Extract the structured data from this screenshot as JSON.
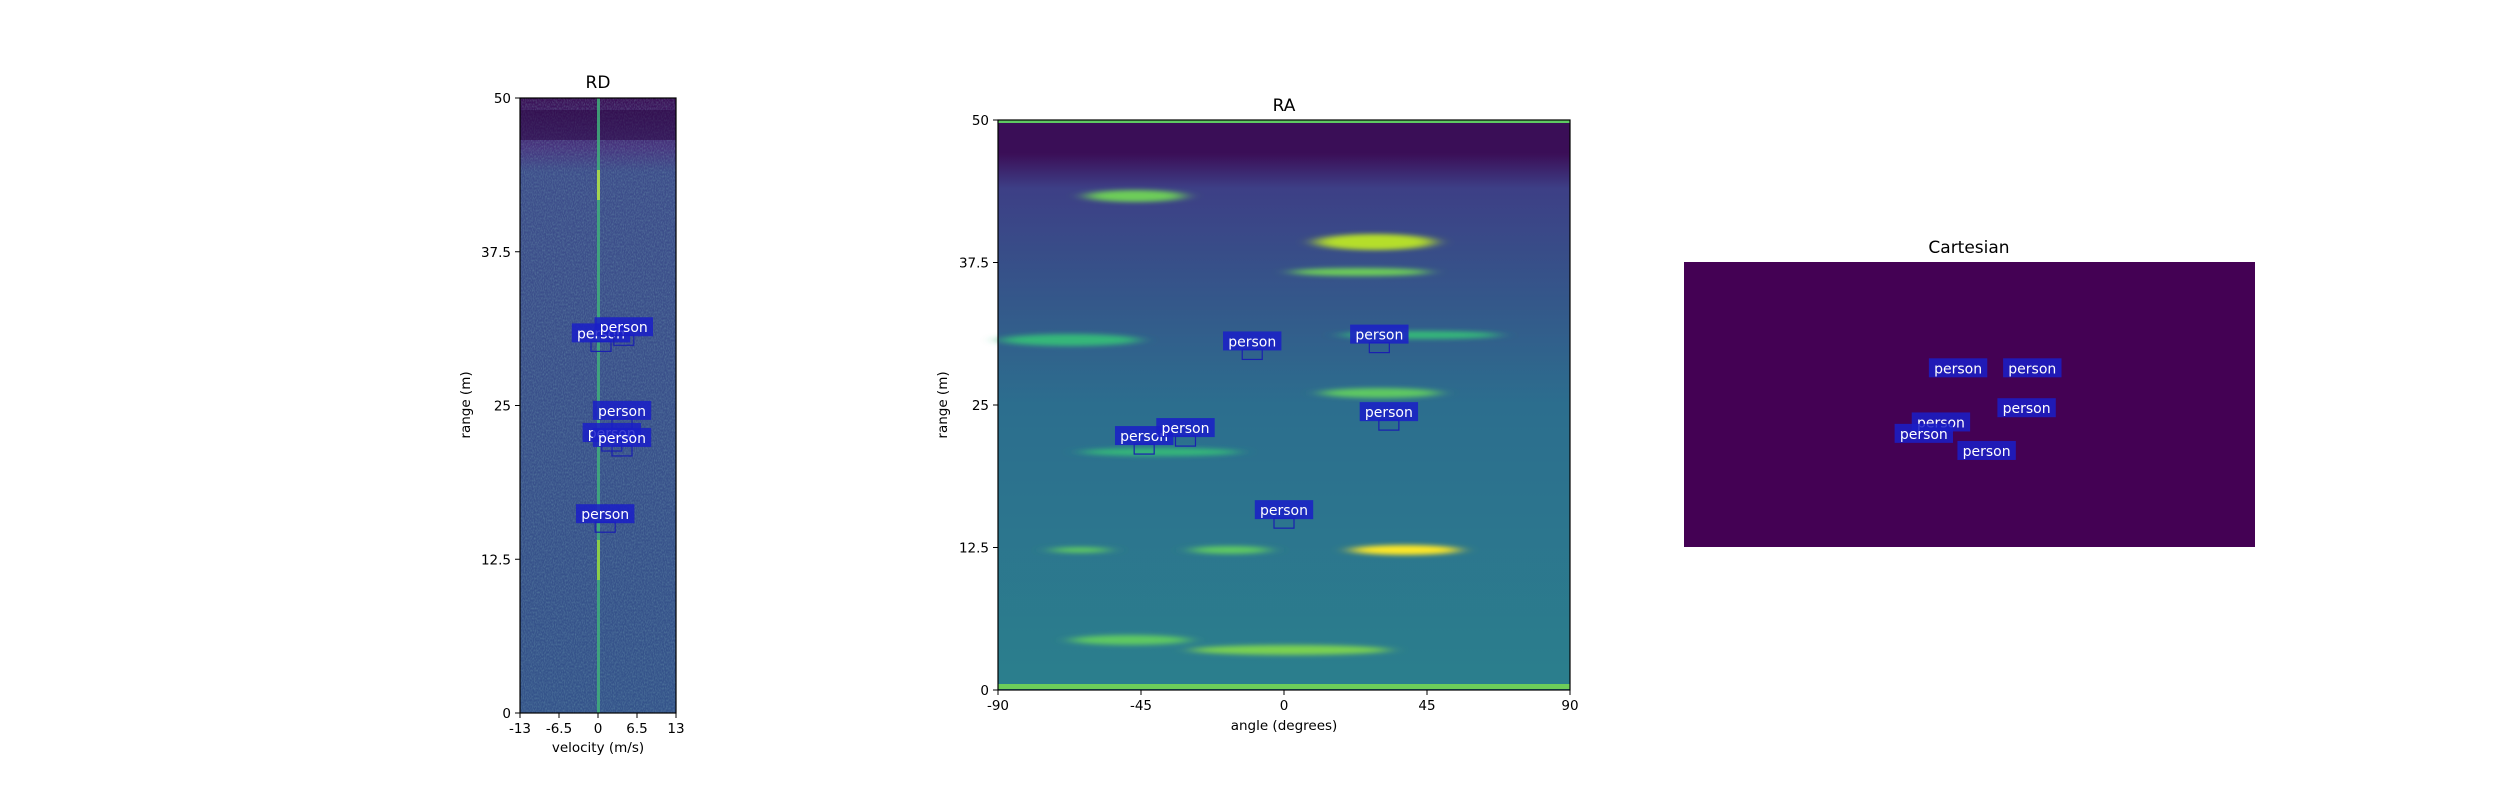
{
  "chart_data": [
    {
      "panel": "rd",
      "type": "heatmap",
      "title": "RD",
      "xlabel": "velocity (m/s)",
      "ylabel": "range (m)",
      "xlim": [
        -13,
        13
      ],
      "ylim": [
        0,
        50
      ],
      "xticks": [
        -13,
        -6.5,
        0,
        6.5,
        13
      ],
      "xtick_labels": [
        "-13",
        "-6.5",
        "0",
        "6.5",
        "13"
      ],
      "yticks": [
        0,
        12.5,
        25,
        37.5,
        50
      ],
      "ytick_labels": [
        "0",
        "12.5",
        "25",
        "37.5",
        "50"
      ],
      "colormap": [
        "#440154",
        "#3b528b",
        "#21918c",
        "#5ec962",
        "#fde725"
      ],
      "detections": [
        {
          "label": "person",
          "x": 0.5,
          "y": 30.7
        },
        {
          "label": "person",
          "x": 4.3,
          "y": 31.2
        },
        {
          "label": "person",
          "x": 4.0,
          "y": 24.4
        },
        {
          "label": "person",
          "x": 2.3,
          "y": 22.6
        },
        {
          "label": "person",
          "x": 4.0,
          "y": 22.2
        },
        {
          "label": "person",
          "x": 1.2,
          "y": 16.0
        }
      ]
    },
    {
      "panel": "ra",
      "type": "heatmap",
      "title": "RA",
      "xlabel": "angle (degrees)",
      "ylabel": "range (m)",
      "xlim": [
        -90,
        90
      ],
      "ylim": [
        0,
        50
      ],
      "xticks": [
        -90,
        -45,
        0,
        45,
        90
      ],
      "xtick_labels": [
        "-90",
        "-45",
        "0",
        "45",
        "90"
      ],
      "yticks": [
        0,
        12.5,
        25,
        37.5,
        50
      ],
      "ytick_labels": [
        "0",
        "12.5",
        "25",
        "37.5",
        "50"
      ],
      "colormap": [
        "#440154",
        "#3b528b",
        "#21918c",
        "#5ec962",
        "#fde725"
      ],
      "detections": [
        {
          "label": "person",
          "x": -10,
          "y": 30.4
        },
        {
          "label": "person",
          "x": 30,
          "y": 31.0
        },
        {
          "label": "person",
          "x": 33,
          "y": 24.2
        },
        {
          "label": "person",
          "x": -44,
          "y": 22.1
        },
        {
          "label": "person",
          "x": -31,
          "y": 22.8
        },
        {
          "label": "person",
          "x": 0,
          "y": 15.6
        }
      ]
    },
    {
      "panel": "cartesian",
      "type": "heatmap",
      "title": "Cartesian",
      "background": "#440154",
      "xlim": [
        0,
        1
      ],
      "ylim": [
        0,
        1
      ],
      "detections": [
        {
          "label": "person",
          "x": 0.48,
          "y": 0.62
        },
        {
          "label": "person",
          "x": 0.61,
          "y": 0.62
        },
        {
          "label": "person",
          "x": 0.6,
          "y": 0.48
        },
        {
          "label": "person",
          "x": 0.45,
          "y": 0.43
        },
        {
          "label": "person",
          "x": 0.42,
          "y": 0.39
        },
        {
          "label": "person",
          "x": 0.53,
          "y": 0.33
        }
      ]
    }
  ]
}
